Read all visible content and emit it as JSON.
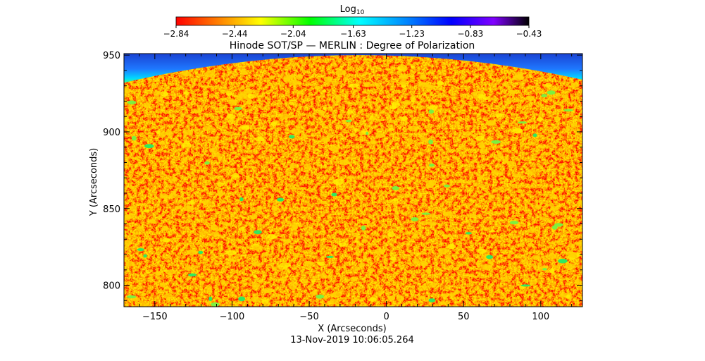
{
  "chart_data": {
    "type": "heatmap",
    "title": "Hinode SOT/SP — MERLIN : Degree of Polarization",
    "xlabel": "X (Arcseconds)",
    "ylabel": "Y (Arcseconds)",
    "xlim": [
      -170,
      127
    ],
    "ylim": [
      786,
      951
    ],
    "x_ticks": [
      -150,
      -100,
      -50,
      0,
      50,
      100
    ],
    "x_tick_labels": [
      "−150",
      "−100",
      "−50",
      "0",
      "50",
      "100"
    ],
    "y_ticks": [
      800,
      850,
      900,
      950
    ],
    "y_tick_labels": [
      "800",
      "850",
      "900",
      "950"
    ],
    "timestamp": "13-Nov-2019 10:06:05.264",
    "colorbar": {
      "label_base": "Log",
      "label_sub": "10",
      "range": [
        -2.84,
        -0.43
      ],
      "ticks": [
        -2.84,
        -2.44,
        -2.04,
        -1.63,
        -1.23,
        -0.83,
        -0.43
      ],
      "tick_labels": [
        "−2.84",
        "−2.44",
        "−2.04",
        "−1.63",
        "−1.23",
        "−0.83",
        "−0.43"
      ],
      "colormap": "rainbow (red → yellow → green → cyan → blue → violet → black)",
      "colors": [
        "#ff0000",
        "#ff8000",
        "#ffff00",
        "#00ff00",
        "#00ffff",
        "#0080ff",
        "#0000ff",
        "#8000ff",
        "#000000"
      ]
    },
    "limb": {
      "description": "solar limb arc near top of field; off-disk region shown in blue",
      "y_at_left": 932,
      "y_at_center": 950,
      "y_at_right": 934
    },
    "background_value": -2.7,
    "grid": false
  }
}
